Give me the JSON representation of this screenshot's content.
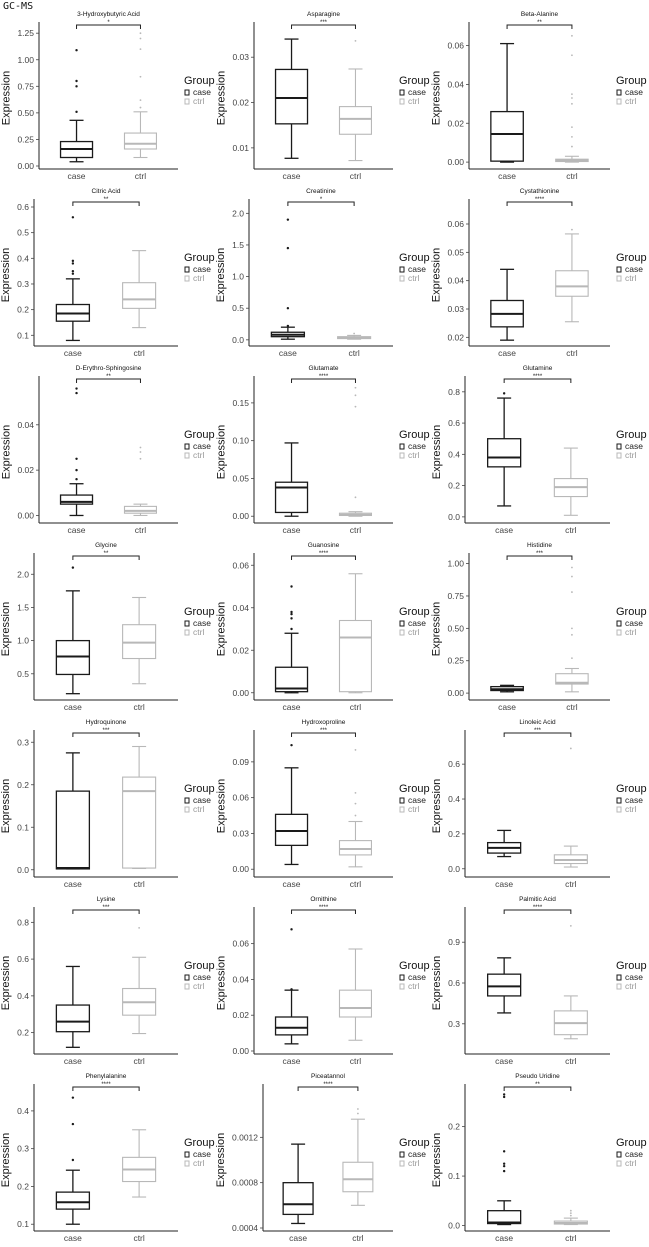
{
  "header": "GC-MS",
  "colors": {
    "case": "#1a1a1a",
    "ctrl": "#b8b8b8"
  },
  "chart_data": {
    "type": "boxplot",
    "ylabel": "Expression",
    "categories": [
      "case",
      "ctrl"
    ],
    "legend": {
      "title": "Group",
      "entries": [
        "case",
        "ctrl"
      ],
      "placement": "right"
    },
    "grid": false,
    "panels": [
      {
        "title": "3-Hydroxybutyric Acid",
        "sig": "*",
        "yticks": [
          "0.00",
          "0.25",
          "0.50",
          "0.75",
          "1.00",
          "1.25"
        ],
        "ylim": [
          0,
          1.28
        ],
        "case": {
          "lo": 0.04,
          "q1": 0.08,
          "med": 0.16,
          "q3": 0.23,
          "hi": 0.43,
          "out": [
            0.51,
            0.75,
            0.8,
            1.09
          ]
        },
        "ctrl": {
          "lo": 0.08,
          "q1": 0.16,
          "med": 0.21,
          "q3": 0.31,
          "hi": 0.51,
          "out": [
            0.55,
            0.62,
            0.84,
            1.1,
            1.2,
            1.25
          ]
        }
      },
      {
        "title": "Asparagine",
        "sig": "***",
        "yticks": [
          "0.01",
          "0.02",
          "0.03"
        ],
        "ylim": [
          0.006,
          0.036
        ],
        "case": {
          "lo": 0.0077,
          "q1": 0.0153,
          "med": 0.021,
          "q3": 0.0273,
          "hi": 0.034,
          "out": []
        },
        "ctrl": {
          "lo": 0.0072,
          "q1": 0.013,
          "med": 0.0164,
          "q3": 0.0191,
          "hi": 0.0274,
          "out": [
            0.0336
          ]
        }
      },
      {
        "title": "Beta-Alanine",
        "sig": "**",
        "yticks": [
          "0.00",
          "0.02",
          "0.04",
          "0.06"
        ],
        "ylim": [
          -0.002,
          0.068
        ],
        "case": {
          "lo": 0,
          "q1": 0.0005,
          "med": 0.0145,
          "q3": 0.026,
          "hi": 0.061,
          "out": []
        },
        "ctrl": {
          "lo": 0,
          "q1": 0.0003,
          "med": 0.0008,
          "q3": 0.0015,
          "hi": 0.003,
          "out": [
            0.008,
            0.013,
            0.018,
            0.03,
            0.033,
            0.035,
            0.055,
            0.065
          ]
        }
      },
      {
        "title": "Citric Acid",
        "sig": "**",
        "yticks": [
          "0.1",
          "0.2",
          "0.3",
          "0.4",
          "0.5",
          "0.6"
        ],
        "ylim": [
          0.07,
          0.6
        ],
        "case": {
          "lo": 0.08,
          "q1": 0.155,
          "med": 0.185,
          "q3": 0.22,
          "hi": 0.32,
          "out": [
            0.34,
            0.35,
            0.38,
            0.39,
            0.56
          ]
        },
        "ctrl": {
          "lo": 0.13,
          "q1": 0.205,
          "med": 0.24,
          "q3": 0.305,
          "hi": 0.43,
          "out": []
        }
      },
      {
        "title": "Creatinine",
        "sig": "*",
        "yticks": [
          "0.0",
          "0.5",
          "1.0",
          "1.5",
          "2.0"
        ],
        "ylim": [
          -0.05,
          2.1
        ],
        "case": {
          "lo": 0.01,
          "q1": 0.05,
          "med": 0.08,
          "q3": 0.12,
          "hi": 0.2,
          "out": [
            0.22,
            0.5,
            1.45,
            1.9
          ]
        },
        "ctrl": {
          "lo": 0.01,
          "q1": 0.02,
          "med": 0.03,
          "q3": 0.05,
          "hi": 0.07,
          "out": [
            0.1
          ]
        }
      },
      {
        "title": "Cystathionine",
        "sig": "****",
        "yticks": [
          "0.02",
          "0.03",
          "0.04",
          "0.05",
          "0.06"
        ],
        "ylim": [
          0.018,
          0.066
        ],
        "case": {
          "lo": 0.019,
          "q1": 0.0237,
          "med": 0.0283,
          "q3": 0.033,
          "hi": 0.044,
          "out": []
        },
        "ctrl": {
          "lo": 0.0255,
          "q1": 0.0345,
          "med": 0.038,
          "q3": 0.0435,
          "hi": 0.0565,
          "out": [
            0.058
          ]
        }
      },
      {
        "title": "D-Erythro-Sphingosine",
        "sig": "**",
        "yticks": [
          "0.00",
          "0.02",
          "0.04"
        ],
        "ylim": [
          -0.002,
          0.058
        ],
        "case": {
          "lo": 0,
          "q1": 0.005,
          "med": 0.006,
          "q3": 0.009,
          "hi": 0.014,
          "out": [
            0.016,
            0.02,
            0.025,
            0.054,
            0.056
          ]
        },
        "ctrl": {
          "lo": 0,
          "q1": 0.001,
          "med": 0.002,
          "q3": 0.004,
          "hi": 0.005,
          "out": [
            0.025,
            0.028,
            0.03
          ]
        }
      },
      {
        "title": "Glutamate",
        "sig": "****",
        "yticks": [
          "0.00",
          "0.05",
          "0.10",
          "0.15"
        ],
        "ylim": [
          -0.005,
          0.175
        ],
        "case": {
          "lo": 0,
          "q1": 0.005,
          "med": 0.038,
          "q3": 0.045,
          "hi": 0.097,
          "out": []
        },
        "ctrl": {
          "lo": 0,
          "q1": 0.001,
          "med": 0.002,
          "q3": 0.004,
          "hi": 0.006,
          "out": [
            0.025,
            0.145,
            0.16,
            0.17
          ]
        }
      },
      {
        "title": "Glutamine",
        "sig": "****",
        "yticks": [
          "0.0",
          "0.2",
          "0.4",
          "0.6",
          "0.8"
        ],
        "ylim": [
          -0.02,
          0.85
        ],
        "case": {
          "lo": 0.07,
          "q1": 0.32,
          "med": 0.38,
          "q3": 0.5,
          "hi": 0.76,
          "out": [
            0.79
          ]
        },
        "ctrl": {
          "lo": 0.01,
          "q1": 0.13,
          "med": 0.19,
          "q3": 0.245,
          "hi": 0.44,
          "out": []
        }
      },
      {
        "title": "Glycine",
        "sig": "**",
        "yticks": [
          "0.5",
          "1.0",
          "1.5",
          "2.0"
        ],
        "ylim": [
          0.15,
          2.2
        ],
        "case": {
          "lo": 0.2,
          "q1": 0.49,
          "med": 0.76,
          "q3": 1.0,
          "hi": 1.75,
          "out": [
            2.1
          ]
        },
        "ctrl": {
          "lo": 0.35,
          "q1": 0.73,
          "med": 0.97,
          "q3": 1.24,
          "hi": 1.65,
          "out": []
        }
      },
      {
        "title": "Guanosine",
        "sig": "****",
        "yticks": [
          "0.00",
          "0.02",
          "0.04",
          "0.06"
        ],
        "ylim": [
          -0.002,
          0.062
        ],
        "case": {
          "lo": 0,
          "q1": 0.0005,
          "med": 0.002,
          "q3": 0.012,
          "hi": 0.028,
          "out": [
            0.03,
            0.035,
            0.037,
            0.038,
            0.05
          ]
        },
        "ctrl": {
          "lo": 0,
          "q1": 0.0005,
          "med": 0.026,
          "q3": 0.034,
          "hi": 0.056,
          "out": []
        }
      },
      {
        "title": "Histidine",
        "sig": "***",
        "yticks": [
          "0.00",
          "0.25",
          "0.50",
          "0.75",
          "1.00"
        ],
        "ylim": [
          -0.03,
          1.02
        ],
        "case": {
          "lo": 0.01,
          "q1": 0.02,
          "med": 0.03,
          "q3": 0.05,
          "hi": 0.06,
          "out": []
        },
        "ctrl": {
          "lo": 0.01,
          "q1": 0.07,
          "med": 0.08,
          "q3": 0.15,
          "hi": 0.19,
          "out": [
            0.27,
            0.45,
            0.5,
            0.78,
            0.9,
            0.97
          ]
        }
      },
      {
        "title": "Hydroquinone",
        "sig": "***",
        "yticks": [
          "0.0",
          "0.1",
          "0.2",
          "0.3"
        ],
        "ylim": [
          -0.01,
          0.31
        ],
        "case": {
          "lo": 0.002,
          "q1": 0.002,
          "med": 0.004,
          "q3": 0.185,
          "hi": 0.275,
          "out": []
        },
        "ctrl": {
          "lo": 0.003,
          "q1": 0.004,
          "med": 0.185,
          "q3": 0.218,
          "hi": 0.29,
          "out": []
        }
      },
      {
        "title": "Hydroxoproline",
        "sig": "***",
        "yticks": [
          "0.00",
          "0.03",
          "0.06",
          "0.09"
        ],
        "ylim": [
          -0.004,
          0.11
        ],
        "case": {
          "lo": 0.004,
          "q1": 0.02,
          "med": 0.032,
          "q3": 0.046,
          "hi": 0.085,
          "out": [
            0.104
          ]
        },
        "ctrl": {
          "lo": 0.002,
          "q1": 0.012,
          "med": 0.017,
          "q3": 0.024,
          "hi": 0.04,
          "out": [
            0.045,
            0.055,
            0.064,
            0.1
          ]
        }
      },
      {
        "title": "Linoleic Acid",
        "sig": "***",
        "yticks": [
          "0.0",
          "0.2",
          "0.4",
          "0.6"
        ],
        "ylim": [
          -0.03,
          0.75
        ],
        "case": {
          "lo": 0.07,
          "q1": 0.09,
          "med": 0.12,
          "q3": 0.15,
          "hi": 0.22,
          "out": []
        },
        "ctrl": {
          "lo": 0.01,
          "q1": 0.03,
          "med": 0.05,
          "q3": 0.08,
          "hi": 0.13,
          "out": [
            0.69
          ]
        }
      },
      {
        "title": "Lysine",
        "sig": "***",
        "yticks": [
          "0.2",
          "0.4",
          "0.6",
          "0.8"
        ],
        "ylim": [
          0.1,
          0.84
        ],
        "case": {
          "lo": 0.12,
          "q1": 0.205,
          "med": 0.26,
          "q3": 0.35,
          "hi": 0.56,
          "out": []
        },
        "ctrl": {
          "lo": 0.195,
          "q1": 0.295,
          "med": 0.365,
          "q3": 0.44,
          "hi": 0.61,
          "out": [
            0.77
          ]
        }
      },
      {
        "title": "Ornithine",
        "sig": "****",
        "yticks": [
          "0.00",
          "0.02",
          "0.04",
          "0.06"
        ],
        "ylim": [
          0,
          0.076
        ],
        "case": {
          "lo": 0.004,
          "q1": 0.009,
          "med": 0.013,
          "q3": 0.019,
          "hi": 0.034,
          "out": [
            0.0345,
            0.068
          ]
        },
        "ctrl": {
          "lo": 0.006,
          "q1": 0.019,
          "med": 0.024,
          "q3": 0.034,
          "hi": 0.057,
          "out": []
        }
      },
      {
        "title": "Palmitic Acid",
        "sig": "****",
        "yticks": [
          "0.3",
          "0.6",
          "0.9"
        ],
        "ylim": [
          0.1,
          1.1
        ],
        "case": {
          "lo": 0.38,
          "q1": 0.505,
          "med": 0.575,
          "q3": 0.665,
          "hi": 0.785,
          "out": []
        },
        "ctrl": {
          "lo": 0.19,
          "q1": 0.22,
          "med": 0.305,
          "q3": 0.395,
          "hi": 0.505,
          "out": [
            1.02
          ]
        }
      },
      {
        "title": "Phenylalanine",
        "sig": "****",
        "yticks": [
          "0.1",
          "0.2",
          "0.3",
          "0.4"
        ],
        "ylim": [
          0.09,
          0.45
        ],
        "case": {
          "lo": 0.1,
          "q1": 0.14,
          "med": 0.158,
          "q3": 0.185,
          "hi": 0.243,
          "out": [
            0.27,
            0.365,
            0.435
          ]
        },
        "ctrl": {
          "lo": 0.172,
          "q1": 0.213,
          "med": 0.245,
          "q3": 0.277,
          "hi": 0.35,
          "out": []
        }
      },
      {
        "title": "Piceatannol",
        "sig": "****",
        "yticks": [
          "0.0004",
          "0.0008",
          "0.0012"
        ],
        "ylim": [
          0.0004,
          0.0016
        ],
        "case": {
          "lo": 0.00044,
          "q1": 0.00052,
          "med": 0.00061,
          "q3": 0.0008,
          "hi": 0.00114,
          "out": []
        },
        "ctrl": {
          "lo": 0.0006,
          "q1": 0.00072,
          "med": 0.00083,
          "q3": 0.00098,
          "hi": 0.00136,
          "out": [
            0.00141,
            0.00145
          ]
        }
      },
      {
        "title": "Pseudo Uridine",
        "sig": "**",
        "yticks": [
          "0.0",
          "0.1",
          "0.2"
        ],
        "ylim": [
          -0.005,
          0.27
        ],
        "case": {
          "lo": 0.002,
          "q1": 0.004,
          "med": 0.006,
          "q3": 0.03,
          "hi": 0.05,
          "out": [
            0.11,
            0.12,
            0.125,
            0.15,
            0.26,
            0.265
          ]
        },
        "ctrl": {
          "lo": 0.002,
          "q1": 0.003,
          "med": 0.005,
          "q3": 0.009,
          "hi": 0.015,
          "out": [
            0.02,
            0.025,
            0.03
          ]
        }
      }
    ]
  }
}
